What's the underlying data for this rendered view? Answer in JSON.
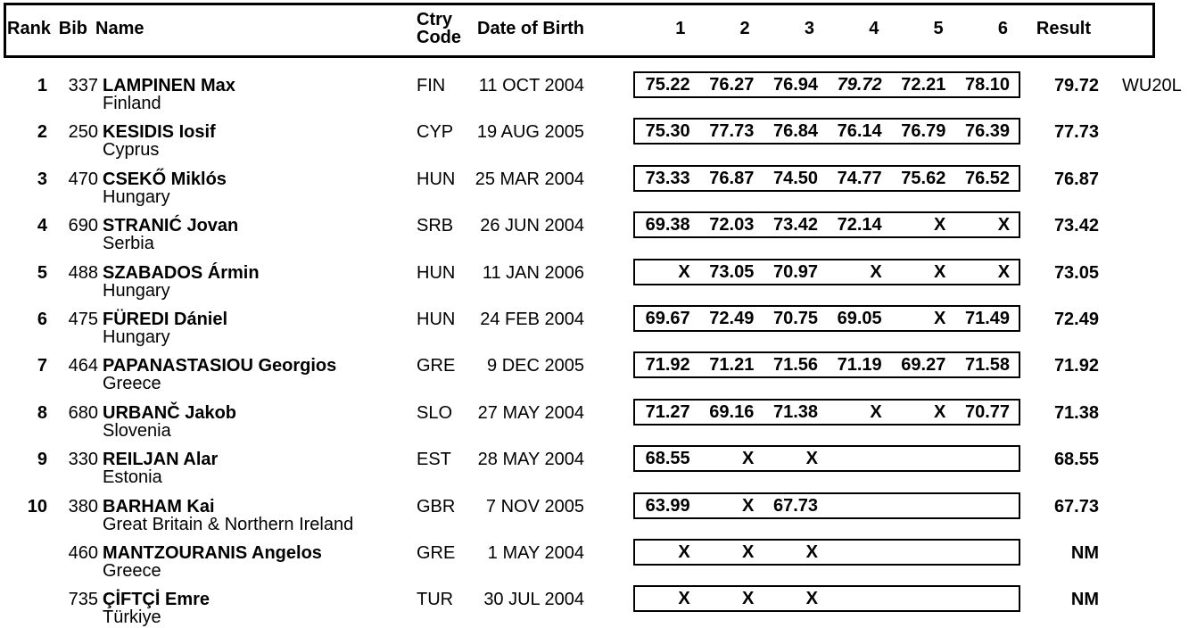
{
  "page": {
    "background": "#ffffff",
    "text_color": "#000000"
  },
  "header": {
    "rank": "Rank",
    "bib": "Bib",
    "name": "Name",
    "ctry_line1": "Ctry",
    "ctry_line2": "Code",
    "dob": "Date of Birth",
    "attempt_cols": [
      "1",
      "2",
      "3",
      "4",
      "5",
      "6"
    ],
    "result": "Result"
  },
  "results": [
    {
      "rank": "1",
      "bib": "337",
      "name": "LAMPINEN Max",
      "country": "Finland",
      "code": "FIN",
      "dob": "11 OCT 2004",
      "attempts": [
        "75.22",
        "76.27",
        "76.94",
        "79.72",
        "72.21",
        "78.10"
      ],
      "italic_attempt": 3,
      "result": "79.72",
      "note": "WU20L"
    },
    {
      "rank": "2",
      "bib": "250",
      "name": "KESIDIS Iosif",
      "country": "Cyprus",
      "code": "CYP",
      "dob": "19 AUG 2005",
      "attempts": [
        "75.30",
        "77.73",
        "76.84",
        "76.14",
        "76.79",
        "76.39"
      ],
      "italic_attempt": -1,
      "result": "77.73",
      "note": ""
    },
    {
      "rank": "3",
      "bib": "470",
      "name": "CSEKŐ Miklós",
      "country": "Hungary",
      "code": "HUN",
      "dob": "25 MAR 2004",
      "attempts": [
        "73.33",
        "76.87",
        "74.50",
        "74.77",
        "75.62",
        "76.52"
      ],
      "italic_attempt": -1,
      "result": "76.87",
      "note": ""
    },
    {
      "rank": "4",
      "bib": "690",
      "name": "STRANIĆ Jovan",
      "country": "Serbia",
      "code": "SRB",
      "dob": "26 JUN 2004",
      "attempts": [
        "69.38",
        "72.03",
        "73.42",
        "72.14",
        "X",
        "X"
      ],
      "italic_attempt": -1,
      "result": "73.42",
      "note": ""
    },
    {
      "rank": "5",
      "bib": "488",
      "name": "SZABADOS Ármin",
      "country": "Hungary",
      "code": "HUN",
      "dob": "11 JAN 2006",
      "attempts": [
        "X",
        "73.05",
        "70.97",
        "X",
        "X",
        "X"
      ],
      "italic_attempt": -1,
      "result": "73.05",
      "note": ""
    },
    {
      "rank": "6",
      "bib": "475",
      "name": "FÜREDI Dániel",
      "country": "Hungary",
      "code": "HUN",
      "dob": "24 FEB 2004",
      "attempts": [
        "69.67",
        "72.49",
        "70.75",
        "69.05",
        "X",
        "71.49"
      ],
      "italic_attempt": -1,
      "result": "72.49",
      "note": ""
    },
    {
      "rank": "7",
      "bib": "464",
      "name": "PAPANASTASIOU Georgios",
      "country": "Greece",
      "code": "GRE",
      "dob": "9 DEC 2005",
      "attempts": [
        "71.92",
        "71.21",
        "71.56",
        "71.19",
        "69.27",
        "71.58"
      ],
      "italic_attempt": -1,
      "result": "71.92",
      "note": ""
    },
    {
      "rank": "8",
      "bib": "680",
      "name": "URBANČ Jakob",
      "country": "Slovenia",
      "code": "SLO",
      "dob": "27 MAY 2004",
      "attempts": [
        "71.27",
        "69.16",
        "71.38",
        "X",
        "X",
        "70.77"
      ],
      "italic_attempt": -1,
      "result": "71.38",
      "note": ""
    },
    {
      "rank": "9",
      "bib": "330",
      "name": "REILJAN Alar",
      "country": "Estonia",
      "code": "EST",
      "dob": "28 MAY 2004",
      "attempts": [
        "68.55",
        "X",
        "X",
        "",
        "",
        ""
      ],
      "italic_attempt": -1,
      "result": "68.55",
      "note": ""
    },
    {
      "rank": "10",
      "bib": "380",
      "name": "BARHAM Kai",
      "country": "Great Britain & Northern Ireland",
      "code": "GBR",
      "dob": "7 NOV 2005",
      "attempts": [
        "63.99",
        "X",
        "67.73",
        "",
        "",
        ""
      ],
      "italic_attempt": -1,
      "result": "67.73",
      "note": ""
    },
    {
      "rank": "",
      "bib": "460",
      "name": "MANTZOURANIS Angelos",
      "country": "Greece",
      "code": "GRE",
      "dob": "1 MAY 2004",
      "attempts": [
        "X",
        "X",
        "X",
        "",
        "",
        ""
      ],
      "italic_attempt": -1,
      "result": "NM",
      "note": ""
    },
    {
      "rank": "",
      "bib": "735",
      "name": "ÇİFTÇİ Emre",
      "country": "Türkiye",
      "code": "TUR",
      "dob": "30 JUL 2004",
      "attempts": [
        "X",
        "X",
        "X",
        "",
        "",
        ""
      ],
      "italic_attempt": -1,
      "result": "NM",
      "note": ""
    }
  ]
}
